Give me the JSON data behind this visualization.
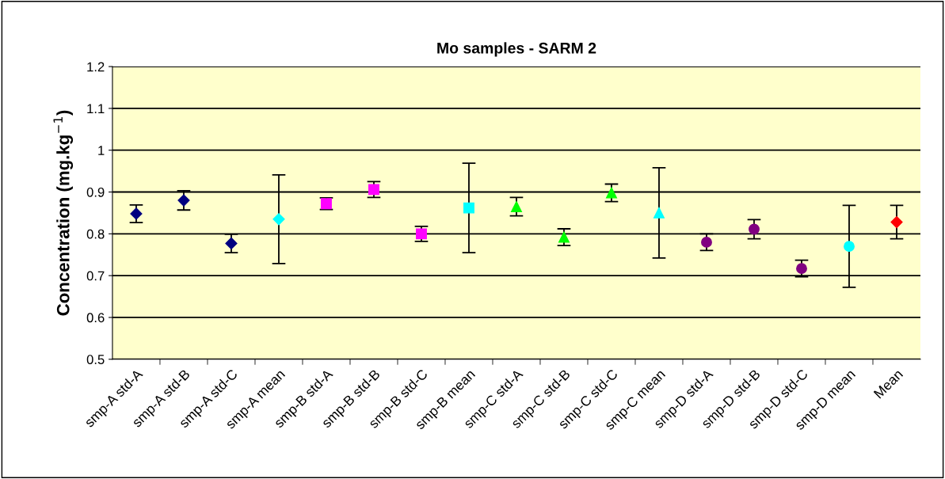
{
  "chart_data": {
    "type": "scatter",
    "title": "Mo samples - SARM 2",
    "ylabel": "Concentration (mg.kg$^{−1}$)",
    "categories": [
      "smp-A std-A",
      "smp-A std-B",
      "smp-A std-C",
      "smp-A mean",
      "smp-B std-A",
      "smp-B std-B",
      "smp-B std-C",
      "smp-B mean",
      "smp-C std-A",
      "smp-C std-B",
      "smp-C std-C",
      "smp-C mean",
      "smp-D std-A",
      "smp-D std-B",
      "smp-D std-C",
      "smp-D mean",
      "Mean"
    ],
    "ylim": [
      0.5,
      1.2
    ],
    "yticks": [
      0.5,
      0.6,
      0.7,
      0.8,
      0.9,
      1,
      1.1,
      1.2
    ],
    "grid": "y",
    "series": [
      {
        "color": "#000080",
        "marker": "diamond",
        "values": [
          0.848,
          0.88,
          0.777,
          null,
          null,
          null,
          null,
          null,
          null,
          null,
          null,
          null,
          null,
          null,
          null,
          null,
          null
        ],
        "errors": [
          0.021,
          0.023,
          0.022,
          null,
          null,
          null,
          null,
          null,
          null,
          null,
          null,
          null,
          null,
          null,
          null,
          null,
          null
        ]
      },
      {
        "color": "#00ffff",
        "marker": "diamond",
        "values": [
          null,
          null,
          null,
          0.835,
          null,
          null,
          null,
          null,
          null,
          null,
          null,
          null,
          null,
          null,
          null,
          null,
          null
        ],
        "errors": [
          null,
          null,
          null,
          0.106,
          null,
          null,
          null,
          null,
          null,
          null,
          null,
          null,
          null,
          null,
          null,
          null,
          null
        ]
      },
      {
        "color": "#ff00ff",
        "marker": "square",
        "values": [
          null,
          null,
          null,
          null,
          0.872,
          0.906,
          0.8,
          null,
          null,
          null,
          null,
          null,
          null,
          null,
          null,
          null,
          null
        ],
        "errors": [
          null,
          null,
          null,
          null,
          0.014,
          0.019,
          0.018,
          null,
          null,
          null,
          null,
          null,
          null,
          null,
          null,
          null,
          null
        ]
      },
      {
        "color": "#00ffff",
        "marker": "square",
        "values": [
          null,
          null,
          null,
          null,
          null,
          null,
          null,
          0.862,
          null,
          null,
          null,
          null,
          null,
          null,
          null,
          null,
          null
        ],
        "errors": [
          null,
          null,
          null,
          null,
          null,
          null,
          null,
          0.107,
          null,
          null,
          null,
          null,
          null,
          null,
          null,
          null,
          null
        ]
      },
      {
        "color": "#00ff00",
        "marker": "triangle",
        "values": [
          null,
          null,
          null,
          null,
          null,
          null,
          null,
          null,
          0.865,
          0.792,
          0.898,
          null,
          null,
          null,
          null,
          null,
          null
        ],
        "errors": [
          null,
          null,
          null,
          null,
          null,
          null,
          null,
          null,
          0.022,
          0.02,
          0.021,
          null,
          null,
          null,
          null,
          null,
          null
        ]
      },
      {
        "color": "#00ffff",
        "marker": "triangle",
        "values": [
          null,
          null,
          null,
          null,
          null,
          null,
          null,
          null,
          null,
          null,
          null,
          0.85,
          null,
          null,
          null,
          null,
          null
        ],
        "errors": [
          null,
          null,
          null,
          null,
          null,
          null,
          null,
          null,
          null,
          null,
          null,
          0.108,
          null,
          null,
          null,
          null,
          null
        ]
      },
      {
        "color": "#800080",
        "marker": "circle",
        "values": [
          null,
          null,
          null,
          null,
          null,
          null,
          null,
          null,
          null,
          null,
          null,
          null,
          0.78,
          0.811,
          0.717,
          null,
          null
        ],
        "errors": [
          null,
          null,
          null,
          null,
          null,
          null,
          null,
          null,
          null,
          null,
          null,
          null,
          0.02,
          0.023,
          0.02,
          null,
          null
        ]
      },
      {
        "color": "#00ffff",
        "marker": "circle",
        "values": [
          null,
          null,
          null,
          null,
          null,
          null,
          null,
          null,
          null,
          null,
          null,
          null,
          null,
          null,
          null,
          0.77,
          null
        ],
        "errors": [
          null,
          null,
          null,
          null,
          null,
          null,
          null,
          null,
          null,
          null,
          null,
          null,
          null,
          null,
          null,
          0.098,
          null
        ]
      },
      {
        "color": "#ff0000",
        "marker": "diamond",
        "values": [
          null,
          null,
          null,
          null,
          null,
          null,
          null,
          null,
          null,
          null,
          null,
          null,
          null,
          null,
          null,
          null,
          0.828
        ],
        "errors": [
          null,
          null,
          null,
          null,
          null,
          null,
          null,
          null,
          null,
          null,
          null,
          null,
          null,
          null,
          null,
          null,
          0.04
        ]
      }
    ]
  }
}
